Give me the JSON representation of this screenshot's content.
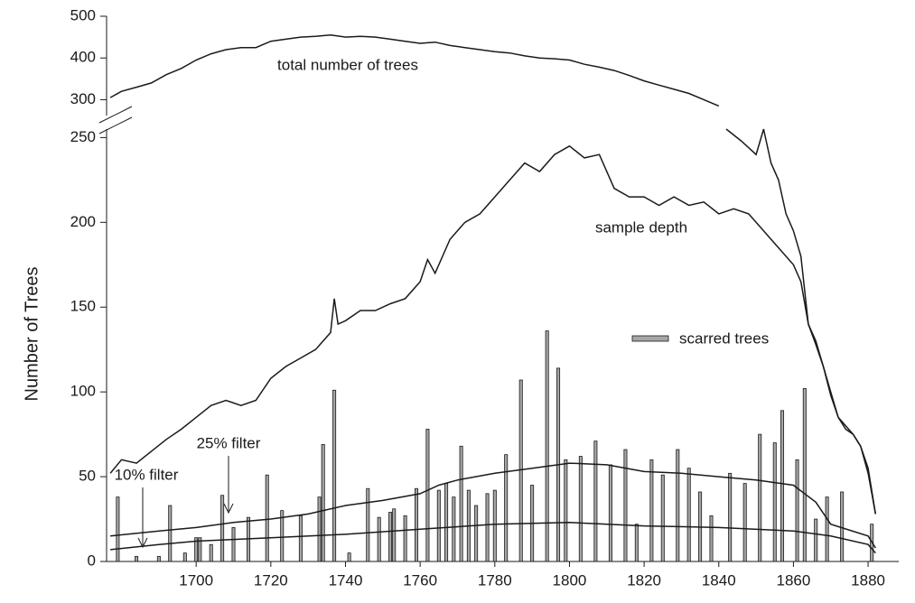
{
  "chart_data": [
    {
      "type": "line",
      "ylim": [
        262,
        500
      ],
      "yticks": [
        300,
        400,
        500
      ],
      "xlim": [
        1676,
        1887
      ],
      "annotations": [
        "total number of trees"
      ],
      "series": [
        {
          "color": "#1a1a1a",
          "x": [
            1677,
            1680,
            1684,
            1688,
            1692,
            1696,
            1700,
            1704,
            1708,
            1712,
            1716,
            1720,
            1724,
            1728,
            1732,
            1736,
            1740,
            1744,
            1748,
            1752,
            1756,
            1760,
            1764,
            1768,
            1772,
            1776,
            1780,
            1784,
            1788,
            1792,
            1796,
            1800,
            1804,
            1808,
            1812,
            1816,
            1820,
            1824,
            1828,
            1832,
            1836,
            1840
          ],
          "values": [
            305,
            320,
            330,
            340,
            360,
            375,
            395,
            410,
            420,
            425,
            425,
            440,
            445,
            450,
            452,
            455,
            450,
            452,
            450,
            445,
            440,
            435,
            438,
            430,
            425,
            420,
            415,
            412,
            405,
            400,
            398,
            395,
            385,
            378,
            370,
            358,
            345,
            335,
            325,
            315,
            300,
            285
          ]
        }
      ]
    },
    {
      "type": "bar",
      "ylabel": "Number of Trees",
      "ylim": [
        0,
        255
      ],
      "yticks": [
        0,
        50,
        100,
        150,
        200,
        250
      ],
      "xlim": [
        1676,
        1887
      ],
      "xticks": [
        1700,
        1720,
        1740,
        1760,
        1780,
        1800,
        1820,
        1840,
        1860,
        1880
      ],
      "annotations": [
        "sample depth",
        "25% filter",
        "10% filter"
      ],
      "series": [
        {
          "type": "bar",
          "name": "scarred trees",
          "color": "#a6a6a6",
          "x": [
            1679,
            1684,
            1690,
            1693,
            1697,
            1700,
            1701,
            1704,
            1707,
            1710,
            1714,
            1719,
            1723,
            1728,
            1733,
            1734,
            1737,
            1741,
            1746,
            1749,
            1752,
            1753,
            1756,
            1759,
            1762,
            1765,
            1767,
            1769,
            1771,
            1773,
            1775,
            1778,
            1780,
            1783,
            1787,
            1790,
            1794,
            1797,
            1799,
            1803,
            1807,
            1811,
            1815,
            1818,
            1822,
            1825,
            1829,
            1832,
            1835,
            1838,
            1843,
            1847,
            1851,
            1855,
            1857,
            1861,
            1863,
            1866,
            1869,
            1873,
            1881
          ],
          "values": [
            38,
            3,
            3,
            33,
            5,
            14,
            14,
            10,
            39,
            20,
            26,
            51,
            30,
            27,
            38,
            69,
            101,
            5,
            43,
            26,
            29,
            31,
            27,
            43,
            78,
            42,
            46,
            38,
            68,
            42,
            33,
            40,
            42,
            63,
            107,
            45,
            136,
            114,
            60,
            62,
            71,
            57,
            66,
            22,
            60,
            51,
            66,
            55,
            41,
            27,
            52,
            46,
            75,
            70,
            89,
            60,
            102,
            25,
            38,
            41,
            22
          ]
        },
        {
          "type": "line",
          "color": "#1a1a1a",
          "x": [
            1677,
            1680,
            1684,
            1688,
            1692,
            1696,
            1700,
            1704,
            1708,
            1712,
            1716,
            1720,
            1724,
            1728,
            1732,
            1736,
            1737,
            1738,
            1740,
            1744,
            1748,
            1752,
            1756,
            1760,
            1762,
            1764,
            1768,
            1772,
            1776,
            1780,
            1784,
            1788,
            1792,
            1796,
            1800,
            1804,
            1808,
            1812,
            1816,
            1820,
            1824,
            1828,
            1832,
            1836,
            1840,
            1844,
            1848,
            1852,
            1856,
            1860,
            1862,
            1864,
            1866,
            1868,
            1870,
            1872,
            1874,
            1876,
            1878,
            1880,
            1882
          ],
          "values": [
            52,
            60,
            58,
            65,
            72,
            78,
            85,
            92,
            95,
            92,
            95,
            108,
            115,
            120,
            125,
            135,
            155,
            140,
            142,
            148,
            148,
            152,
            155,
            165,
            178,
            170,
            190,
            200,
            205,
            215,
            225,
            235,
            230,
            240,
            245,
            238,
            240,
            220,
            215,
            215,
            210,
            215,
            210,
            212,
            205,
            208,
            205,
            195,
            185,
            175,
            165,
            140,
            128,
            115,
            98,
            85,
            80,
            75,
            68,
            52,
            28
          ]
        },
        {
          "type": "line",
          "color": "#1a1a1a",
          "x": [
            1842,
            1846,
            1850,
            1852,
            1854,
            1856,
            1858,
            1860,
            1862,
            1864,
            1866,
            1868,
            1870,
            1872,
            1874,
            1876,
            1878,
            1880,
            1882
          ],
          "values": [
            255,
            248,
            240,
            255,
            235,
            225,
            205,
            195,
            180,
            140,
            130,
            115,
            100,
            85,
            78,
            75,
            68,
            55,
            28
          ]
        },
        {
          "type": "line",
          "color": "#1a1a1a",
          "x": [
            1677,
            1690,
            1700,
            1710,
            1720,
            1730,
            1740,
            1750,
            1760,
            1765,
            1770,
            1780,
            1790,
            1800,
            1810,
            1820,
            1830,
            1840,
            1850,
            1860,
            1866,
            1870,
            1880,
            1882
          ],
          "values": [
            15,
            18,
            20,
            23,
            25,
            28,
            33,
            36,
            40,
            45,
            48,
            52,
            55,
            58,
            57,
            53,
            52,
            50,
            48,
            45,
            35,
            22,
            15,
            8
          ]
        },
        {
          "type": "line",
          "color": "#1a1a1a",
          "x": [
            1677,
            1690,
            1700,
            1710,
            1720,
            1740,
            1760,
            1780,
            1800,
            1820,
            1840,
            1860,
            1870,
            1880,
            1882
          ],
          "values": [
            7,
            10,
            12,
            13,
            14,
            16,
            19,
            22,
            23,
            21,
            20,
            18,
            15,
            10,
            5
          ]
        }
      ]
    }
  ]
}
